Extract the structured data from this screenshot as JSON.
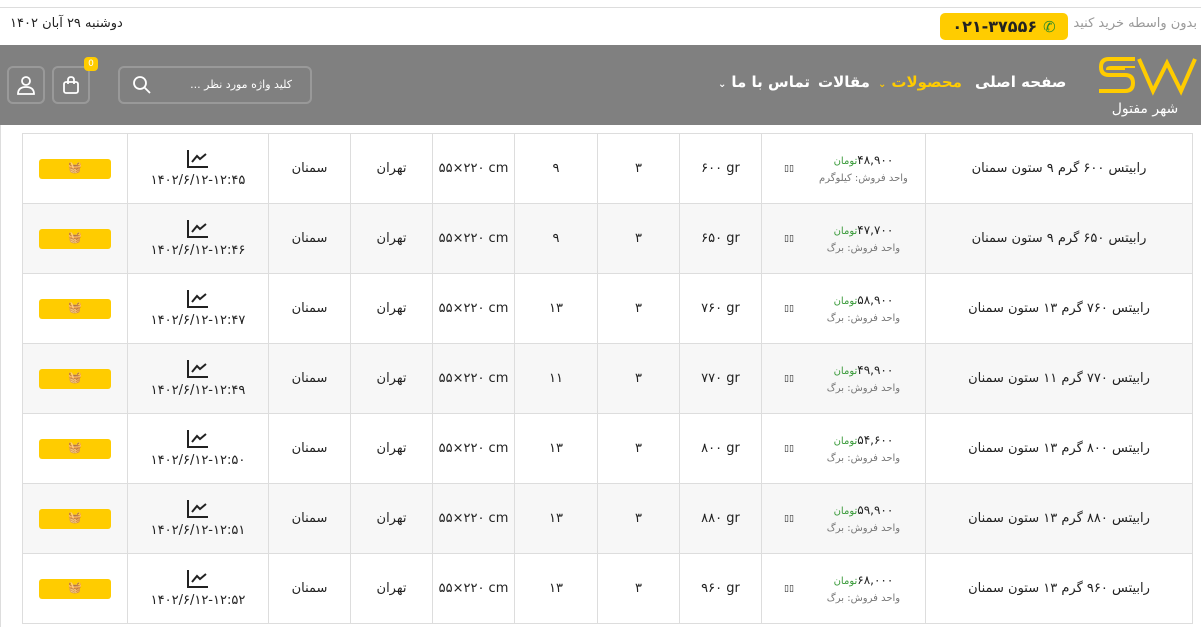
{
  "topbar": {
    "date": "دوشنبه ۲۹ آبان ۱۴۰۲",
    "tagline": "بدون واسطه خرید کنید",
    "phone": "۰۲۱-۳۷۵۵۶"
  },
  "nav": {
    "logo_text": "شهر مفتول",
    "items": [
      {
        "label": "صفحه اصلی"
      },
      {
        "label": "محصولات"
      },
      {
        "label": "مقالات"
      },
      {
        "label": "تماس با ما"
      }
    ],
    "search_placeholder": "کلید واژه مورد نظر ...",
    "cart_count": "0",
    "accent": "#ffcc00"
  },
  "rows": [
    {
      "name": "رابیتس ۶۰۰ گرم ۹ ستون سمنان",
      "price": "۴۸,۹۰۰",
      "currency": "تومان",
      "unit": "واحد فروش: کیلوگرم",
      "weight": "۶۰۰ gr",
      "c1": "۳",
      "cols": "۹",
      "size": "۵۵×۲۲۰ cm",
      "city": "تهران",
      "factory": "سمنان",
      "updated": "۱۴۰۲/۶/۱۲-۱۲:۴۵"
    },
    {
      "name": "رابیتس ۶۵۰ گرم ۹ ستون سمنان",
      "price": "۴۷,۷۰۰",
      "currency": "تومان",
      "unit": "واحد فروش: برگ",
      "weight": "۶۵۰ gr",
      "c1": "۳",
      "cols": "۹",
      "size": "۵۵×۲۲۰ cm",
      "city": "تهران",
      "factory": "سمنان",
      "updated": "۱۴۰۲/۶/۱۲-۱۲:۴۶"
    },
    {
      "name": "رابیتس ۷۶۰ گرم ۱۳ ستون سمنان",
      "price": "۵۸,۹۰۰",
      "currency": "تومان",
      "unit": "واحد فروش: برگ",
      "weight": "۷۶۰ gr",
      "c1": "۳",
      "cols": "۱۳",
      "size": "۵۵×۲۲۰ cm",
      "city": "تهران",
      "factory": "سمنان",
      "updated": "۱۴۰۲/۶/۱۲-۱۲:۴۷"
    },
    {
      "name": "رابیتس ۷۷۰ گرم ۱۱ ستون سمنان",
      "price": "۴۹,۹۰۰",
      "currency": "تومان",
      "unit": "واحد فروش: برگ",
      "weight": "۷۷۰ gr",
      "c1": "۳",
      "cols": "۱۱",
      "size": "۵۵×۲۲۰ cm",
      "city": "تهران",
      "factory": "سمنان",
      "updated": "۱۴۰۲/۶/۱۲-۱۲:۴۹"
    },
    {
      "name": "رابیتس ۸۰۰ گرم ۱۳ ستون سمنان",
      "price": "۵۴,۶۰۰",
      "currency": "تومان",
      "unit": "واحد فروش: برگ",
      "weight": "۸۰۰ gr",
      "c1": "۳",
      "cols": "۱۳",
      "size": "۵۵×۲۲۰ cm",
      "city": "تهران",
      "factory": "سمنان",
      "updated": "۱۴۰۲/۶/۱۲-۱۲:۵۰"
    },
    {
      "name": "رابیتس ۸۸۰ گرم ۱۳ ستون سمنان",
      "price": "۵۹,۹۰۰",
      "currency": "تومان",
      "unit": "واحد فروش: برگ",
      "weight": "۸۸۰ gr",
      "c1": "۳",
      "cols": "۱۳",
      "size": "۵۵×۲۲۰ cm",
      "city": "تهران",
      "factory": "سمنان",
      "updated": "۱۴۰۲/۶/۱۲-۱۲:۵۱"
    },
    {
      "name": "رابیتس ۹۶۰ گرم ۱۳ ستون سمنان",
      "price": "۶۸,۰۰۰",
      "currency": "تومان",
      "unit": "واحد فروش: برگ",
      "weight": "۹۶۰ gr",
      "c1": "۳",
      "cols": "۱۳",
      "size": "۵۵×۲۲۰ cm",
      "city": "تهران",
      "factory": "سمنان",
      "updated": "۱۴۰۲/۶/۱۲-۱۲:۵۲"
    }
  ]
}
